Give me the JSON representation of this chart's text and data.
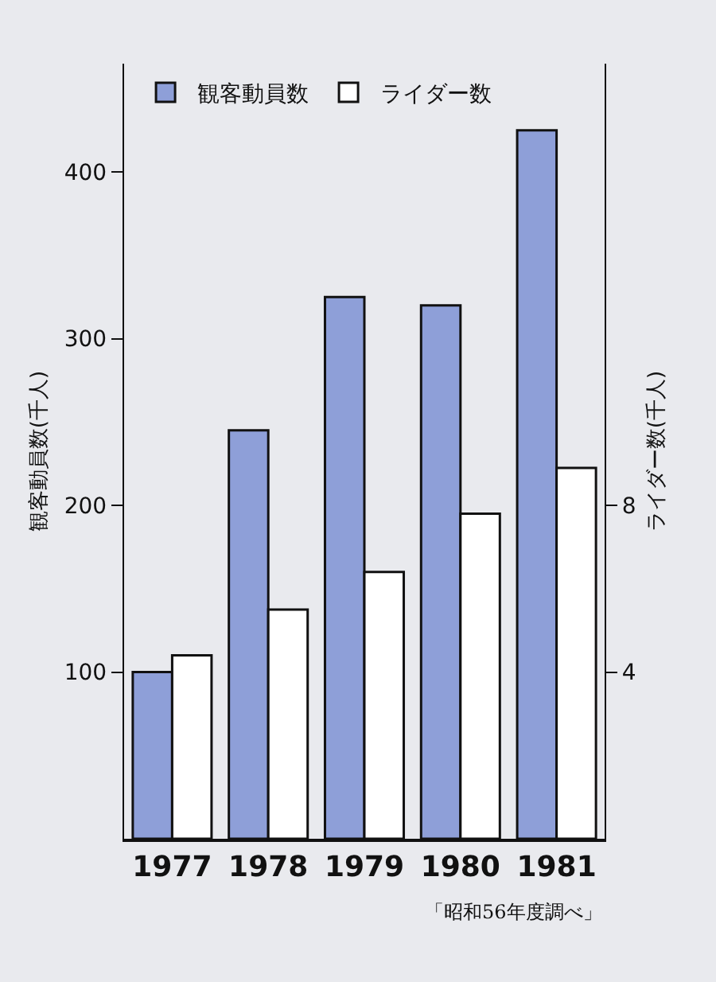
{
  "chart_data": {
    "type": "bar",
    "categories": [
      "1977",
      "1978",
      "1979",
      "1980",
      "1981"
    ],
    "series": [
      {
        "name": "観客動員数",
        "color": "#8e9fd8",
        "values": [
          100,
          245,
          325,
          320,
          425
        ]
      },
      {
        "name": "ライダー数",
        "color": "#ffffff",
        "axis": "y2",
        "values": [
          4.4,
          5.5,
          6.4,
          7.8,
          8.9
        ]
      }
    ],
    "ylabel": "観客動員数(千人)",
    "y2label": "ライダー数(千人)",
    "ylim": [
      0,
      465
    ],
    "yticks": [
      100,
      200,
      300,
      400
    ],
    "y2lim": [
      0,
      18.6
    ],
    "y2ticks": [
      4,
      8
    ],
    "legend": "top left",
    "annotations": [
      "「昭和56年度調べ」"
    ]
  }
}
